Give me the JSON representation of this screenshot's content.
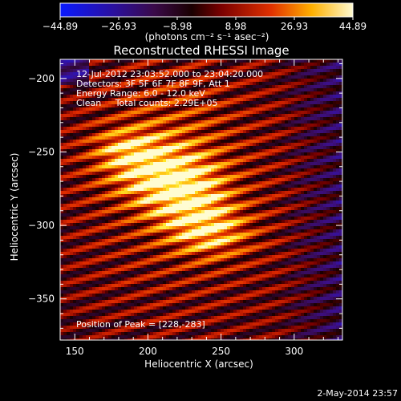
{
  "chart_data": {
    "type": "heatmap",
    "title": "Reconstructed RHESSI Image",
    "xlabel": "Heliocentric X (arcsec)",
    "ylabel": "Heliocentric Y (arcsec)",
    "xlim": [
      140,
      333
    ],
    "ylim": [
      -378,
      -187
    ],
    "x_ticks": [
      150,
      200,
      250,
      300
    ],
    "y_ticks": [
      -200,
      -250,
      -300,
      -350
    ],
    "x_tick_labels": [
      "150",
      "200",
      "250",
      "300"
    ],
    "y_tick_labels": [
      "−200",
      "−250",
      "−300",
      "−350"
    ],
    "colorbar": {
      "min": -44.89,
      "max": 44.89,
      "tick_labels": [
        "−44.89",
        "−26.93",
        "−8.98",
        "8.98",
        "26.93",
        "44.89"
      ],
      "units_label": "(photons cm⁻² s⁻¹ asec⁻²)"
    },
    "annotations": {
      "time_range": "12-Jul-2012 23:03:52.000 to 23:04:20.000",
      "detectors": "Detectors: 3F 5F 6F 7F 8F 9F, Att 1",
      "energy": "Energy Range: 6.0 - 12.0 keV",
      "clean": "Clean     Total counts: 2.29E+05",
      "peak": "Position of Peak = [228,-283]"
    },
    "peak": [
      228,
      -283
    ],
    "stripe_angle_deg": 15,
    "footer_date": "2-May-2014 23:57"
  }
}
